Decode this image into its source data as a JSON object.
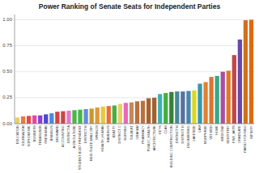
{
  "chart_data": {
    "type": "bar",
    "title": "Power Ranking of Senate Seats for Independent Parties",
    "categories": [
      "EDUCATION",
      "JOURNALISM",
      "SOPHOMORE",
      "BUSINESS",
      "TREASURER",
      "FRESHMAN",
      "JENNINGS",
      "BROWARD",
      "ACCOUNTING",
      "DISTRICT A",
      "AGRICULTURE",
      "STUDENT BODY PRESIDENT",
      "DISTRICT B",
      "REID-TULEE-MALLORY",
      "SPRINGS",
      "HEALTH_HUMAN",
      "RAWLINGS",
      "BEATTY",
      "DISTRICT C",
      "NURSING",
      "TOLBERT",
      "GRAHAM",
      "PHARMACY",
      "PUBLIC_HEALTH",
      "ARCHITECTURE",
      "KEYS",
      "CLAS",
      "BUILDING CONSTRUCTION",
      "DISTRICT B",
      "DISTRICT D",
      "ENGINEERING",
      "LAKESIDE",
      "LAW",
      "MURPHREE",
      "VET MED",
      "HUME",
      "MEDICINE",
      "DENTISTRY",
      "FINE_ARTS",
      "GRADUATE",
      "FAMILY HOUSING",
      "INFINITY"
    ],
    "values": [
      0.06,
      0.07,
      0.075,
      0.08,
      0.08,
      0.09,
      0.1,
      0.115,
      0.12,
      0.125,
      0.13,
      0.135,
      0.14,
      0.145,
      0.155,
      0.165,
      0.17,
      0.175,
      0.19,
      0.2,
      0.205,
      0.215,
      0.22,
      0.245,
      0.25,
      0.285,
      0.295,
      0.305,
      0.31,
      0.31,
      0.315,
      0.32,
      0.385,
      0.4,
      0.45,
      0.46,
      0.5,
      0.51,
      0.66,
      0.81,
      0.995,
      1.0
    ],
    "colors": [
      "#e8d060",
      "#e87840",
      "#e84848",
      "#e048a8",
      "#8840d8",
      "#4848d0",
      "#4888e0",
      "#d84040",
      "#c84848",
      "#e878d0",
      "#48b848",
      "#48b848",
      "#6888e0",
      "#c89830",
      "#e09838",
      "#e8c840",
      "#e87038",
      "#48b040",
      "#e8d068",
      "#e868b8",
      "#c88858",
      "#b87040",
      "#b87040",
      "#a86030",
      "#a06030",
      "#40b0b0",
      "#40b040",
      "#388038",
      "#488898",
      "#5870a0",
      "#4888a8",
      "#d8d828",
      "#3898a8",
      "#e08030",
      "#d87830",
      "#38a888",
      "#a850a0",
      "#e07828",
      "#c04848",
      "#6848a8",
      "#d07020",
      "#e06810"
    ],
    "ylim": [
      0,
      1.05
    ],
    "yticks": [
      {
        "value": 0,
        "label": "0.00"
      },
      {
        "value": 0.25,
        "label": "0.25"
      },
      {
        "value": 0.5,
        "label": "0.50"
      },
      {
        "value": 0.75,
        "label": "0.75"
      },
      {
        "value": 1,
        "label": "1.00"
      }
    ],
    "grid": true
  }
}
